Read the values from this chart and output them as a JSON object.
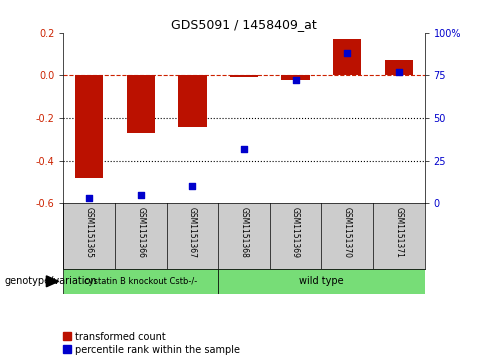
{
  "title": "GDS5091 / 1458409_at",
  "samples": [
    "GSM1151365",
    "GSM1151366",
    "GSM1151367",
    "GSM1151368",
    "GSM1151369",
    "GSM1151370",
    "GSM1151371"
  ],
  "red_bars": [
    -0.48,
    -0.27,
    -0.24,
    -0.01,
    -0.02,
    0.17,
    0.07
  ],
  "blue_dots": [
    3,
    5,
    10,
    32,
    72,
    88,
    77
  ],
  "ylim_left": [
    -0.6,
    0.2
  ],
  "ylim_right": [
    0,
    100
  ],
  "yticks_left": [
    -0.6,
    -0.4,
    -0.2,
    0.0,
    0.2
  ],
  "yticks_right": [
    0,
    25,
    50,
    75,
    100
  ],
  "ytick_labels_right": [
    "0",
    "25",
    "50",
    "75",
    "100%"
  ],
  "group0_label": "cystatin B knockout Cstb-/-",
  "group0_indices": [
    0,
    1,
    2
  ],
  "group1_label": "wild type",
  "group1_indices": [
    3,
    4,
    5,
    6
  ],
  "group_color": "#77dd77",
  "genotype_label": "genotype/variation",
  "legend_red": "transformed count",
  "legend_blue": "percentile rank within the sample",
  "bar_color": "#bb1100",
  "dot_color": "#0000cc",
  "hline_color": "#cc2200",
  "bar_width": 0.55
}
